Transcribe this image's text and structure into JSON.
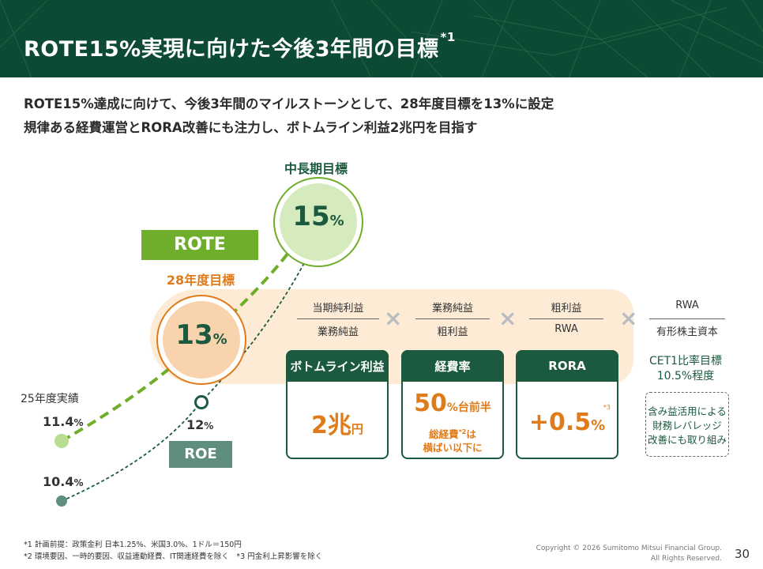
{
  "header": {
    "title": "ROTE15%実現に向けた今後3年間の目標",
    "title_sup": "*1"
  },
  "subtitle": {
    "line1": "ROTE15%達成に向けて、今後3年間のマイルストーンとして、28年度目標を13%に設定",
    "line2": "規律ある経費運営とRORA改善にも注力し、ボトムライン利益2兆円を目指す"
  },
  "chart": {
    "mid_long_label": "中長期目標",
    "target_15": "15",
    "target_15_unit": "%",
    "rote_label": "ROTE",
    "fy28_label": "28年度目標",
    "target_13": "13",
    "target_13_unit": "%",
    "fy25_label": "25年度実績",
    "rote_actual": "11.4",
    "rote_actual_unit": "%",
    "roe_actual": "10.4",
    "roe_actual_unit": "%",
    "roe_target": "12",
    "roe_target_unit": "%",
    "roe_label": "ROE"
  },
  "formula": {
    "f1_num": "当期純利益",
    "f1_den": "業務純益",
    "f2_num": "業務純益",
    "f2_den": "粗利益",
    "f3_num": "粗利益",
    "f3_den": "RWA",
    "f4_num": "RWA",
    "f4_den": "有形株主資本",
    "times": "×"
  },
  "boxes": {
    "bottom_line": {
      "head": "ボトムライン利益",
      "value": "2兆",
      "unit": "円"
    },
    "expense_ratio": {
      "head": "経費率",
      "value": "50",
      "unit": "%台前半",
      "note1": "総経費",
      "note_sup": "*2",
      "note1_tail": "は",
      "note2": "横ばい以下に"
    },
    "rora": {
      "head": "RORA",
      "value": "+0.5",
      "unit": "%",
      "sup": "*3"
    }
  },
  "cet1": {
    "line1": "CET1比率目標",
    "line2": "10.5%程度"
  },
  "leverage_note": {
    "line1": "含み益活用による",
    "line2": "財務レバレッジ",
    "line3": "改善にも取り組み"
  },
  "footnotes": {
    "n1": "*1 計画前提：政策金利 日本1.25%、米国3.0%、1ドル＝150円",
    "n2": "*2 環境要因、一時的要因、収益連動経費、IT関連経費を除く　*3 円金利上昇影響を除く"
  },
  "footer": {
    "copyright1": "Copyright © 2026 Sumitomo Mitsui Financial Group.",
    "copyright2": "All Rights Reserved.",
    "page": "30"
  },
  "colors": {
    "header_bg": "#0d4a34",
    "rote_green": "#6fae2a",
    "roe_teal": "#5f8f7c",
    "accent_orange": "#e07b1a",
    "box_green": "#1b5a3e",
    "band_peach": "#fdebd6"
  }
}
